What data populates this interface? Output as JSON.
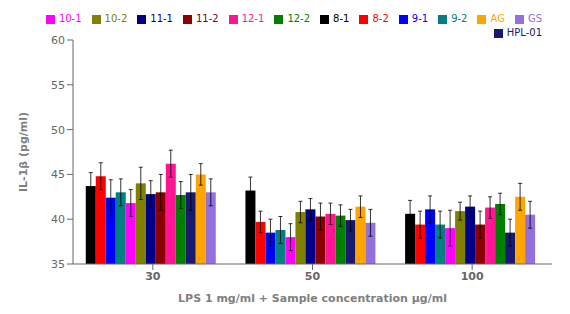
{
  "chart_data": {
    "type": "bar",
    "categories": [
      "30",
      "50",
      "100"
    ],
    "series": [
      {
        "name": "8-1",
        "color": "#000000",
        "values": [
          43.7,
          43.2,
          40.6
        ],
        "errors": [
          1.5,
          1.5,
          1.5
        ]
      },
      {
        "name": "8-2",
        "color": "#ff0000",
        "values": [
          44.8,
          39.7,
          39.4
        ],
        "errors": [
          1.5,
          1.2,
          1.5
        ]
      },
      {
        "name": "9-1",
        "color": "#0000ff",
        "values": [
          42.4,
          38.5,
          41.1
        ],
        "errors": [
          2.0,
          1.5,
          1.5
        ]
      },
      {
        "name": "9-2",
        "color": "#008080",
        "values": [
          43.0,
          38.8,
          39.4
        ],
        "errors": [
          1.5,
          1.5,
          1.5
        ]
      },
      {
        "name": "10-1",
        "color": "#ff00ff",
        "values": [
          41.8,
          38.0,
          39.0
        ],
        "errors": [
          1.5,
          1.5,
          2.0
        ]
      },
      {
        "name": "10-2",
        "color": "#808000",
        "values": [
          44.0,
          40.8,
          40.9
        ],
        "errors": [
          1.8,
          1.2,
          1.0
        ]
      },
      {
        "name": "11-1",
        "color": "#00008b",
        "values": [
          42.8,
          41.1,
          41.4
        ],
        "errors": [
          1.5,
          1.2,
          1.2
        ]
      },
      {
        "name": "11-2",
        "color": "#8b0000",
        "values": [
          43.0,
          40.3,
          39.4
        ],
        "errors": [
          2.0,
          1.5,
          1.5
        ]
      },
      {
        "name": "12-1",
        "color": "#ff1493",
        "values": [
          46.2,
          40.6,
          41.3
        ],
        "errors": [
          1.5,
          1.2,
          1.2
        ]
      },
      {
        "name": "12-2",
        "color": "#008000",
        "values": [
          42.7,
          40.4,
          41.7
        ],
        "errors": [
          1.5,
          1.2,
          1.2
        ]
      },
      {
        "name": "HPL-01",
        "color": "#191970",
        "values": [
          43.0,
          39.9,
          38.5
        ],
        "errors": [
          2.0,
          1.2,
          1.5
        ]
      },
      {
        "name": "AG",
        "color": "#ffa500",
        "values": [
          45.0,
          41.4,
          42.5
        ],
        "errors": [
          1.2,
          1.2,
          1.5
        ]
      },
      {
        "name": "GS",
        "color": "#9370db",
        "values": [
          43.0,
          39.6,
          40.5
        ],
        "errors": [
          1.5,
          1.5,
          1.5
        ]
      }
    ],
    "ylabel": "IL-1β (pg/ml)",
    "xlabel": "LPS 1 mg/ml + Sample concentration  μg/ml",
    "ylim": [
      35,
      60
    ],
    "yticks": [
      35,
      40,
      45,
      50,
      55,
      60
    ],
    "grid": false,
    "legend": "upper right"
  }
}
